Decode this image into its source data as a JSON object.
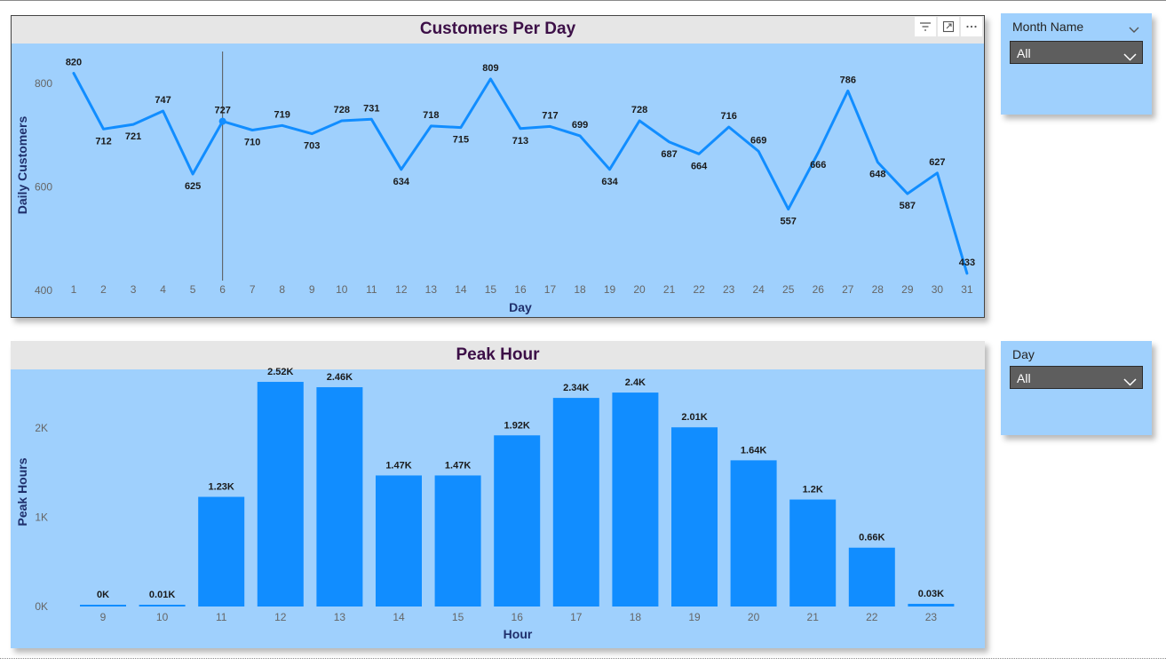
{
  "slicers": {
    "month": {
      "title": "Month Name",
      "value": "All"
    },
    "day": {
      "title": "Day",
      "value": "All"
    }
  },
  "icons": {
    "header": [
      "filter-icon",
      "focus-mode-icon",
      "more-options-icon"
    ],
    "slicer": [
      "chevron-down-icon"
    ]
  },
  "colors": {
    "plot_bg": "#9fd0fd",
    "series": "#118dff",
    "title": "#3c0f47",
    "axis_title": "#1f2f6b"
  },
  "chart_data": [
    {
      "type": "line",
      "title": "Customers Per Day",
      "xlabel": "Day",
      "ylabel": "Daily Customers",
      "x": [
        1,
        2,
        3,
        4,
        5,
        6,
        7,
        8,
        9,
        10,
        11,
        12,
        13,
        14,
        15,
        16,
        17,
        18,
        19,
        20,
        21,
        22,
        23,
        24,
        25,
        26,
        27,
        28,
        29,
        30,
        31
      ],
      "values": [
        820,
        712,
        721,
        747,
        625,
        727,
        710,
        719,
        703,
        728,
        731,
        634,
        718,
        715,
        809,
        713,
        717,
        699,
        634,
        728,
        687,
        664,
        716,
        669,
        557,
        666,
        786,
        648,
        587,
        627,
        433
      ],
      "data_labels": [
        "820",
        "712",
        "721",
        "747",
        "625",
        "727",
        "710",
        "719",
        "703",
        "728",
        "731",
        "634",
        "718",
        "715",
        "809",
        "713",
        "717",
        "699",
        "634",
        "728",
        "687",
        "664",
        "716",
        "669",
        "557",
        "666",
        "786",
        "648",
        "587",
        "627",
        "433"
      ],
      "yticks": [
        400,
        600,
        800
      ],
      "ytick_labels": [
        "400",
        "600",
        "800"
      ],
      "ylim": [
        400,
        850
      ],
      "highlight_x": 6,
      "grid": false
    },
    {
      "type": "bar",
      "title": "Peak Hour",
      "xlabel": "Hour",
      "ylabel": "Peak Hours",
      "categories": [
        "9",
        "10",
        "11",
        "12",
        "13",
        "14",
        "15",
        "16",
        "17",
        "18",
        "19",
        "20",
        "21",
        "22",
        "23"
      ],
      "values": [
        2,
        10,
        1230,
        2520,
        2460,
        1470,
        1470,
        1920,
        2340,
        2400,
        2010,
        1640,
        1200,
        660,
        30
      ],
      "data_labels": [
        "0K",
        "0.01K",
        "1.23K",
        "2.52K",
        "2.46K",
        "1.47K",
        "1.47K",
        "1.92K",
        "2.34K",
        "2.4K",
        "2.01K",
        "1.64K",
        "1.2K",
        "0.66K",
        "0.03K"
      ],
      "yticks": [
        0,
        1000,
        2000
      ],
      "ytick_labels": [
        "0K",
        "1K",
        "2K"
      ],
      "ylim": [
        0,
        2600
      ],
      "grid": false
    }
  ]
}
